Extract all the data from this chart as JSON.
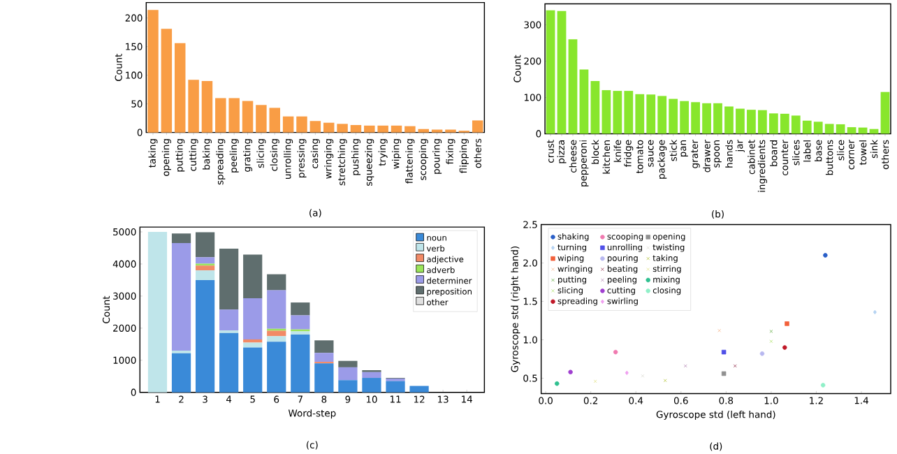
{
  "chart_data": [
    {
      "type": "bar",
      "ylabel": "Count",
      "annotations": [
        "(a)"
      ],
      "color": "#f99d45",
      "categories": [
        "taking",
        "opening",
        "putting",
        "cutting",
        "baking",
        "spreading",
        "peeling",
        "grating",
        "slicing",
        "closing",
        "unrolling",
        "pressing",
        "casing",
        "wringing",
        "stretching",
        "pushing",
        "squeezing",
        "trying",
        "wiping",
        "flattening",
        "scooping",
        "pouring",
        "fixing",
        "flipping",
        "others"
      ],
      "values": [
        214,
        181,
        156,
        92,
        90,
        60,
        60,
        55,
        48,
        43,
        28,
        28,
        20,
        17,
        15,
        13,
        12,
        12,
        12,
        11,
        6,
        5,
        5,
        3,
        21
      ],
      "ylim": [
        0,
        227
      ],
      "yticks": [
        0,
        50,
        100,
        150,
        200
      ]
    },
    {
      "type": "bar",
      "ylabel": "Count",
      "annotations": [
        "(b)"
      ],
      "color": "#88e62c",
      "categories": [
        "crust",
        "pizza",
        "cheese",
        "pepperoni",
        "block",
        "kitchen",
        "knife",
        "fridge",
        "tomato",
        "sauce",
        "package",
        "stick",
        "pan",
        "grater",
        "drawer",
        "spoon",
        "hands",
        "jar",
        "cabinet",
        "ingredients",
        "board",
        "counter",
        "slices",
        "label",
        "base",
        "buttons",
        "slice",
        "corner",
        "towel",
        "sink",
        "others"
      ],
      "values": [
        340,
        338,
        260,
        177,
        145,
        120,
        118,
        118,
        109,
        108,
        104,
        96,
        90,
        87,
        84,
        84,
        75,
        69,
        66,
        65,
        56,
        55,
        50,
        36,
        33,
        27,
        26,
        18,
        17,
        13,
        115
      ],
      "ylim": [
        0,
        358
      ],
      "yticks": [
        0,
        100,
        200,
        300
      ]
    },
    {
      "type": "bar",
      "stacked": true,
      "xlabel": "Word-step",
      "ylabel": "Count",
      "annotations": [
        "(c)"
      ],
      "legend": "top right",
      "categories": [
        "1",
        "2",
        "3",
        "4",
        "5",
        "6",
        "7",
        "8",
        "9",
        "10",
        "11",
        "12",
        "13",
        "14"
      ],
      "series": [
        {
          "name": "noun",
          "color": "#3a8ad8",
          "values": [
            0,
            1220,
            3500,
            1850,
            1400,
            1580,
            1800,
            900,
            380,
            450,
            350,
            200,
            0,
            0
          ]
        },
        {
          "name": "verb",
          "color": "#bfe5ea",
          "values": [
            5000,
            80,
            300,
            80,
            150,
            170,
            100,
            null,
            0,
            0,
            0,
            0,
            0,
            0
          ]
        },
        {
          "name": "adjective",
          "color": "#f28a66",
          "values": [
            0,
            0,
            150,
            0,
            100,
            170,
            0,
            50,
            0,
            0,
            0,
            0,
            0,
            0
          ]
        },
        {
          "name": "adverb",
          "color": "#9be55a",
          "values": [
            0,
            0,
            60,
            0,
            0,
            60,
            60,
            0,
            0,
            0,
            0,
            0,
            0,
            0
          ]
        },
        {
          "name": "determiner",
          "color": "#9b9be8",
          "values": [
            0,
            3350,
            200,
            650,
            1280,
            1200,
            440,
            280,
            400,
            180,
            80,
            0,
            0,
            0
          ]
        },
        {
          "name": "preposition",
          "color": "#5f6e6e",
          "values": [
            0,
            300,
            780,
            1900,
            1360,
            500,
            400,
            390,
            200,
            60,
            20,
            0,
            0,
            0
          ]
        },
        {
          "name": "other",
          "color": "#e0e0e0",
          "values": [
            0,
            0,
            0,
            0,
            0,
            0,
            0,
            0,
            0,
            0,
            0,
            0,
            0,
            0
          ]
        }
      ],
      "ylim": [
        0,
        5150
      ],
      "yticks": [
        0,
        1000,
        2000,
        3000,
        4000,
        5000
      ]
    },
    {
      "type": "scatter",
      "xlabel": "Gyroscope std (left hand)",
      "ylabel": "Gyroscope std (right hand)",
      "annotations": [
        "(d)"
      ],
      "legend": "top left",
      "series": [
        {
          "name": "shaking",
          "color": "#2a5fc8",
          "marker": "circle",
          "x": [
            1.24
          ],
          "values": [
            2.1
          ]
        },
        {
          "name": "turning",
          "color": "#b5d3f2",
          "marker": "diamond",
          "x": [
            1.46
          ],
          "values": [
            1.36
          ]
        },
        {
          "name": "wiping",
          "color": "#f2603a",
          "marker": "square",
          "x": [
            1.07
          ],
          "values": [
            1.21
          ]
        },
        {
          "name": "wringing",
          "color": "#f5b080",
          "marker": "cross",
          "x": [
            0.77
          ],
          "values": [
            1.12
          ]
        },
        {
          "name": "putting",
          "color": "#5aa83a",
          "marker": "cross",
          "x": [
            1.0
          ],
          "values": [
            1.11
          ]
        },
        {
          "name": "slicing",
          "color": "#a8e060",
          "marker": "cross",
          "x": [
            1.0
          ],
          "values": [
            0.98
          ]
        },
        {
          "name": "spreading",
          "color": "#c01828",
          "marker": "circle",
          "x": [
            1.06
          ],
          "values": [
            0.9
          ]
        },
        {
          "name": "scooping",
          "color": "#f07ab0",
          "marker": "circle",
          "x": [
            0.31
          ],
          "values": [
            0.84
          ]
        },
        {
          "name": "unrolling",
          "color": "#5050e8",
          "marker": "square",
          "x": [
            0.79
          ],
          "values": [
            0.84
          ]
        },
        {
          "name": "pouring",
          "color": "#b8b8f0",
          "marker": "circle",
          "x": [
            0.96
          ],
          "values": [
            0.82
          ]
        },
        {
          "name": "beating",
          "color": "#8a2040",
          "marker": "cross",
          "x": [
            0.84
          ],
          "values": [
            0.66
          ]
        },
        {
          "name": "peeling",
          "color": "#b080b0",
          "marker": "cross",
          "x": [
            0.62
          ],
          "values": [
            0.66
          ]
        },
        {
          "name": "cutting",
          "color": "#a040d0",
          "marker": "circle",
          "x": [
            0.11
          ],
          "values": [
            0.58
          ]
        },
        {
          "name": "swirling",
          "color": "#f0a0f0",
          "marker": "diamond",
          "x": [
            0.36
          ],
          "values": [
            0.57
          ]
        },
        {
          "name": "opening",
          "color": "#909090",
          "marker": "square",
          "x": [
            0.79
          ],
          "values": [
            0.56
          ]
        },
        {
          "name": "twisting",
          "color": "#d8d8d0",
          "marker": "cross",
          "x": [
            0.43
          ],
          "values": [
            0.53
          ]
        },
        {
          "name": "taking",
          "color": "#b0c030",
          "marker": "cross",
          "x": [
            0.53
          ],
          "values": [
            0.47
          ]
        },
        {
          "name": "stirring",
          "color": "#e0e080",
          "marker": "cross",
          "x": [
            0.22
          ],
          "values": [
            0.46
          ]
        },
        {
          "name": "mixing",
          "color": "#30c090",
          "marker": "circle",
          "x": [
            0.05
          ],
          "values": [
            0.43
          ]
        },
        {
          "name": "closing",
          "color": "#90f0c8",
          "marker": "circle",
          "x": [
            1.23
          ],
          "values": [
            0.41
          ]
        }
      ],
      "xlim": [
        -0.02,
        1.53
      ],
      "ylim": [
        0.3,
        2.5
      ],
      "xticks": [
        {
          "value": 0,
          "label": "0.0"
        },
        {
          "value": 0.2,
          "label": "0.2"
        },
        {
          "value": 0.4,
          "label": "0.4"
        },
        {
          "value": 0.6,
          "label": "0.6"
        },
        {
          "value": 0.8,
          "label": "0.8"
        },
        {
          "value": 1.0,
          "label": "1.0"
        },
        {
          "value": 1.2,
          "label": "1.2"
        },
        {
          "value": 1.4,
          "label": "1.4"
        }
      ],
      "yticks": [
        {
          "value": 0.5,
          "label": "0.5"
        },
        {
          "value": 1.0,
          "label": "1.0"
        },
        {
          "value": 1.5,
          "label": "1.5"
        },
        {
          "value": 2.0,
          "label": "2.0"
        },
        {
          "value": 2.5,
          "label": "2.5"
        }
      ]
    }
  ]
}
